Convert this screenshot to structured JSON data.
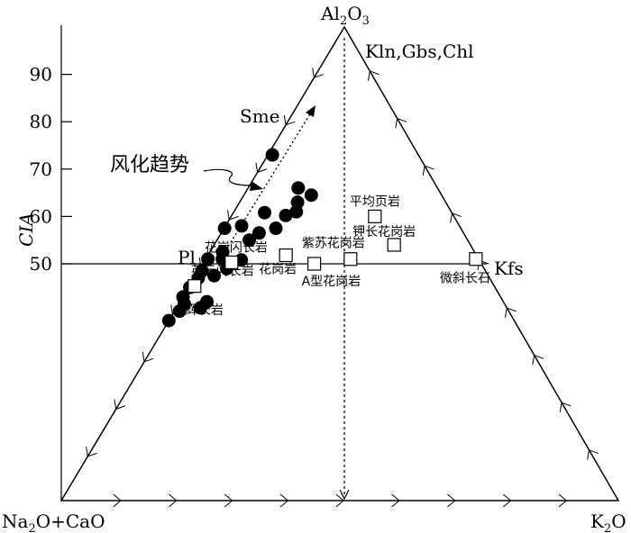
{
  "chart_data": {
    "type": "scatter",
    "subtype": "ternary diagram with CIA scale",
    "title": "",
    "vertices": {
      "top": {
        "base": "Al",
        "sub1": "2",
        "mid": "O",
        "sub2": "3"
      },
      "left": {
        "p1": "Na",
        "sub1": "2",
        "p2": "O+CaO"
      },
      "right": {
        "base": "K",
        "sub1": "2",
        "p2": "O"
      }
    },
    "cia_axis": {
      "label": "CIA",
      "range": [
        0,
        100
      ],
      "ticks": [
        "50",
        "60",
        "70",
        "80",
        "90"
      ],
      "tick_values": [
        50,
        60,
        70,
        80,
        90
      ],
      "reference_line_value": 50
    },
    "end_members": {
      "top": "Kln,Gbs,Chl",
      "smectite": "Sme",
      "plagioclase": "Pl",
      "k_feldspar": "Kfs"
    },
    "trend_label": "风化趋势",
    "sample_series": {
      "marker": "filled-circle",
      "points": [
        {
          "x": 0.0,
          "y": 43
        },
        {
          "x": 0.0,
          "y": 38
        },
        {
          "x": 0.9,
          "y": 40
        },
        {
          "x": 4.3,
          "y": 40.7
        },
        {
          "x": 1.0,
          "y": 41.5
        },
        {
          "x": 4.8,
          "y": 42
        },
        {
          "x": 0.2,
          "y": 45
        },
        {
          "x": 0.7,
          "y": 47
        },
        {
          "x": 3.3,
          "y": 47.5
        },
        {
          "x": 0.6,
          "y": 48.5
        },
        {
          "x": 4.8,
          "y": 49
        },
        {
          "x": 0.4,
          "y": 51
        },
        {
          "x": 3.0,
          "y": 51
        },
        {
          "x": 6.5,
          "y": 50.8
        },
        {
          "x": 2.3,
          "y": 52.5
        },
        {
          "x": 5.8,
          "y": 55
        },
        {
          "x": 0.1,
          "y": 57.5
        },
        {
          "x": 2.9,
          "y": 58
        },
        {
          "x": 6.8,
          "y": 56.5
        },
        {
          "x": 9.3,
          "y": 57.5
        },
        {
          "x": 5.6,
          "y": 60.8
        },
        {
          "x": 9.7,
          "y": 60.2
        },
        {
          "x": 11.2,
          "y": 61
        },
        {
          "x": 10.4,
          "y": 63
        },
        {
          "x": 9.0,
          "y": 66
        },
        {
          "x": 12.1,
          "y": 64.5
        },
        {
          "x": 0.8,
          "y": 73
        }
      ]
    },
    "reference_series": {
      "marker": "open-square",
      "points": [
        {
          "x": 0.9,
          "y": 45.3,
          "label": "英云闪长岩"
        },
        {
          "x": 5.0,
          "y": 50.3,
          "label": "花岗闪长岩"
        },
        {
          "x": 14.0,
          "y": 51.8,
          "label": "花岗岩"
        },
        {
          "x": 20.0,
          "y": 50.0,
          "label": "A型花岗岩"
        },
        {
          "x": 26.0,
          "y": 51.0,
          "label": "紫苏花岗岩"
        },
        {
          "x": 32.3,
          "y": 54.0,
          "label": "钾长花岗岩"
        },
        {
          "x": 25.8,
          "y": 60.0,
          "label": "平均页岩"
        },
        {
          "x": 48.5,
          "y": 51.0,
          "label": "微斜长石"
        }
      ]
    },
    "standalone_labels": [
      {
        "text": "辉长岩",
        "x": 0.0,
        "y": 42.0
      }
    ],
    "grid": false,
    "legend": "none"
  }
}
